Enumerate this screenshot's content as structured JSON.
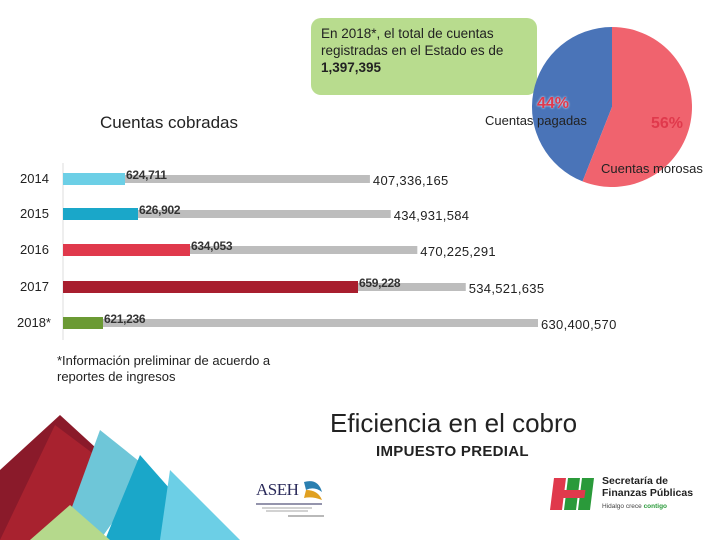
{
  "callout": {
    "text": "En 2018*, el total de cuentas registradas en el Estado es de",
    "total": "1,397,395"
  },
  "subtitle": "Cuentas cobradas",
  "note": "*Información preliminar de acuerdo a reportes de ingresos",
  "heading": "Eficiencia en el cobro",
  "tax": "IMPUESTO PREDIAL",
  "logos": {
    "asel_text": "ASEH",
    "sfp_line1": "Secretaría de",
    "sfp_line2": "Finanzas Públicas",
    "sfp_tag_a": "Hidalgo crece ",
    "sfp_tag_b": "contigo"
  },
  "colors": {
    "total_bar": "#bdbdbd",
    "pie_pagadas": "#4a74b8",
    "pie_morosas": "#f0636e"
  },
  "chart_data": [
    {
      "type": "bar",
      "orientation": "horizontal",
      "title": "Cuentas cobradas",
      "categories": [
        "2014",
        "2015",
        "2016",
        "2017",
        "2018*"
      ],
      "series": [
        {
          "name": "Cuentas cobradas",
          "values": [
            624711,
            626902,
            634053,
            659228,
            621236
          ],
          "labels": [
            "624,711",
            "626,902",
            "634,053",
            "659,228",
            "621,236"
          ],
          "colors": [
            "#6ccfe6",
            "#1aa7c9",
            "#e0394c",
            "#a81e2e",
            "#6b9a34"
          ]
        },
        {
          "name": "Total",
          "values": [
            407336165,
            434931584,
            470225291,
            534521635,
            630400570
          ],
          "labels": [
            "407,336,165",
            "434,931,584",
            "470,225,291",
            "534,521,635",
            "630,400,570"
          ]
        }
      ]
    },
    {
      "type": "pie",
      "slices": [
        {
          "label": "Cuentas pagadas",
          "value": 44,
          "pct_label": "44%"
        },
        {
          "label": "Cuentas morosas",
          "value": 56,
          "pct_label": "56%"
        }
      ]
    }
  ]
}
